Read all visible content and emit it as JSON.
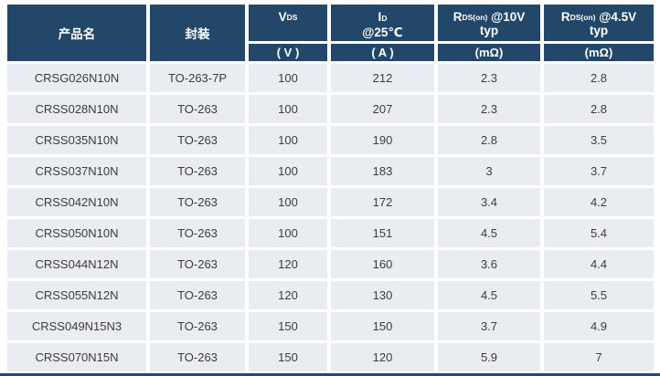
{
  "table": {
    "header": {
      "product": {
        "label": "产品名"
      },
      "package": {
        "label": "封装"
      },
      "vds": {
        "sym": "V",
        "sub": "DS",
        "unit": "( V )"
      },
      "id": {
        "sym": "I",
        "sub": "D",
        "line2": "@25℃",
        "unit": "( A )"
      },
      "rds10": {
        "sym": "R",
        "sub": "DS(on)",
        "cond": " @10V",
        "line2": "typ",
        "unit": "(mΩ)"
      },
      "rds45": {
        "sym": "R",
        "sub": "DS(on)",
        "cond": " @4.5V",
        "line2": "typ",
        "unit": "(mΩ)"
      }
    },
    "rows": [
      [
        "CRSG026N10N",
        "TO-263-7P",
        "100",
        "212",
        "2.3",
        "2.8"
      ],
      [
        "CRSS028N10N",
        "TO-263",
        "100",
        "207",
        "2.3",
        "2.8"
      ],
      [
        "CRSS035N10N",
        "TO-263",
        "100",
        "190",
        "2.8",
        "3.5"
      ],
      [
        "CRSS037N10N",
        "TO-263",
        "100",
        "183",
        "3",
        "3.7"
      ],
      [
        "CRSS042N10N",
        "TO-263",
        "100",
        "172",
        "3.4",
        "4.2"
      ],
      [
        "CRSS050N10N",
        "TO-263",
        "100",
        "151",
        "4.5",
        "5.4"
      ],
      [
        "CRSS044N12N",
        "TO-263",
        "120",
        "160",
        "3.6",
        "4.4"
      ],
      [
        "CRSS055N12N",
        "TO-263",
        "120",
        "130",
        "4.5",
        "5.5"
      ],
      [
        "CRSS049N15N3",
        "TO-263",
        "150",
        "150",
        "3.7",
        "4.9"
      ],
      [
        "CRSS070N15N",
        "TO-263",
        "150",
        "120",
        "5.9",
        "7"
      ]
    ],
    "colors": {
      "header_bg": "#234769",
      "header_text": "#FFFFFF",
      "row_bg": "#E9EDF2",
      "data_text": "#3C3C3C",
      "grid_gap": "#FFFFFF",
      "bottom_line": "#24477A"
    }
  }
}
